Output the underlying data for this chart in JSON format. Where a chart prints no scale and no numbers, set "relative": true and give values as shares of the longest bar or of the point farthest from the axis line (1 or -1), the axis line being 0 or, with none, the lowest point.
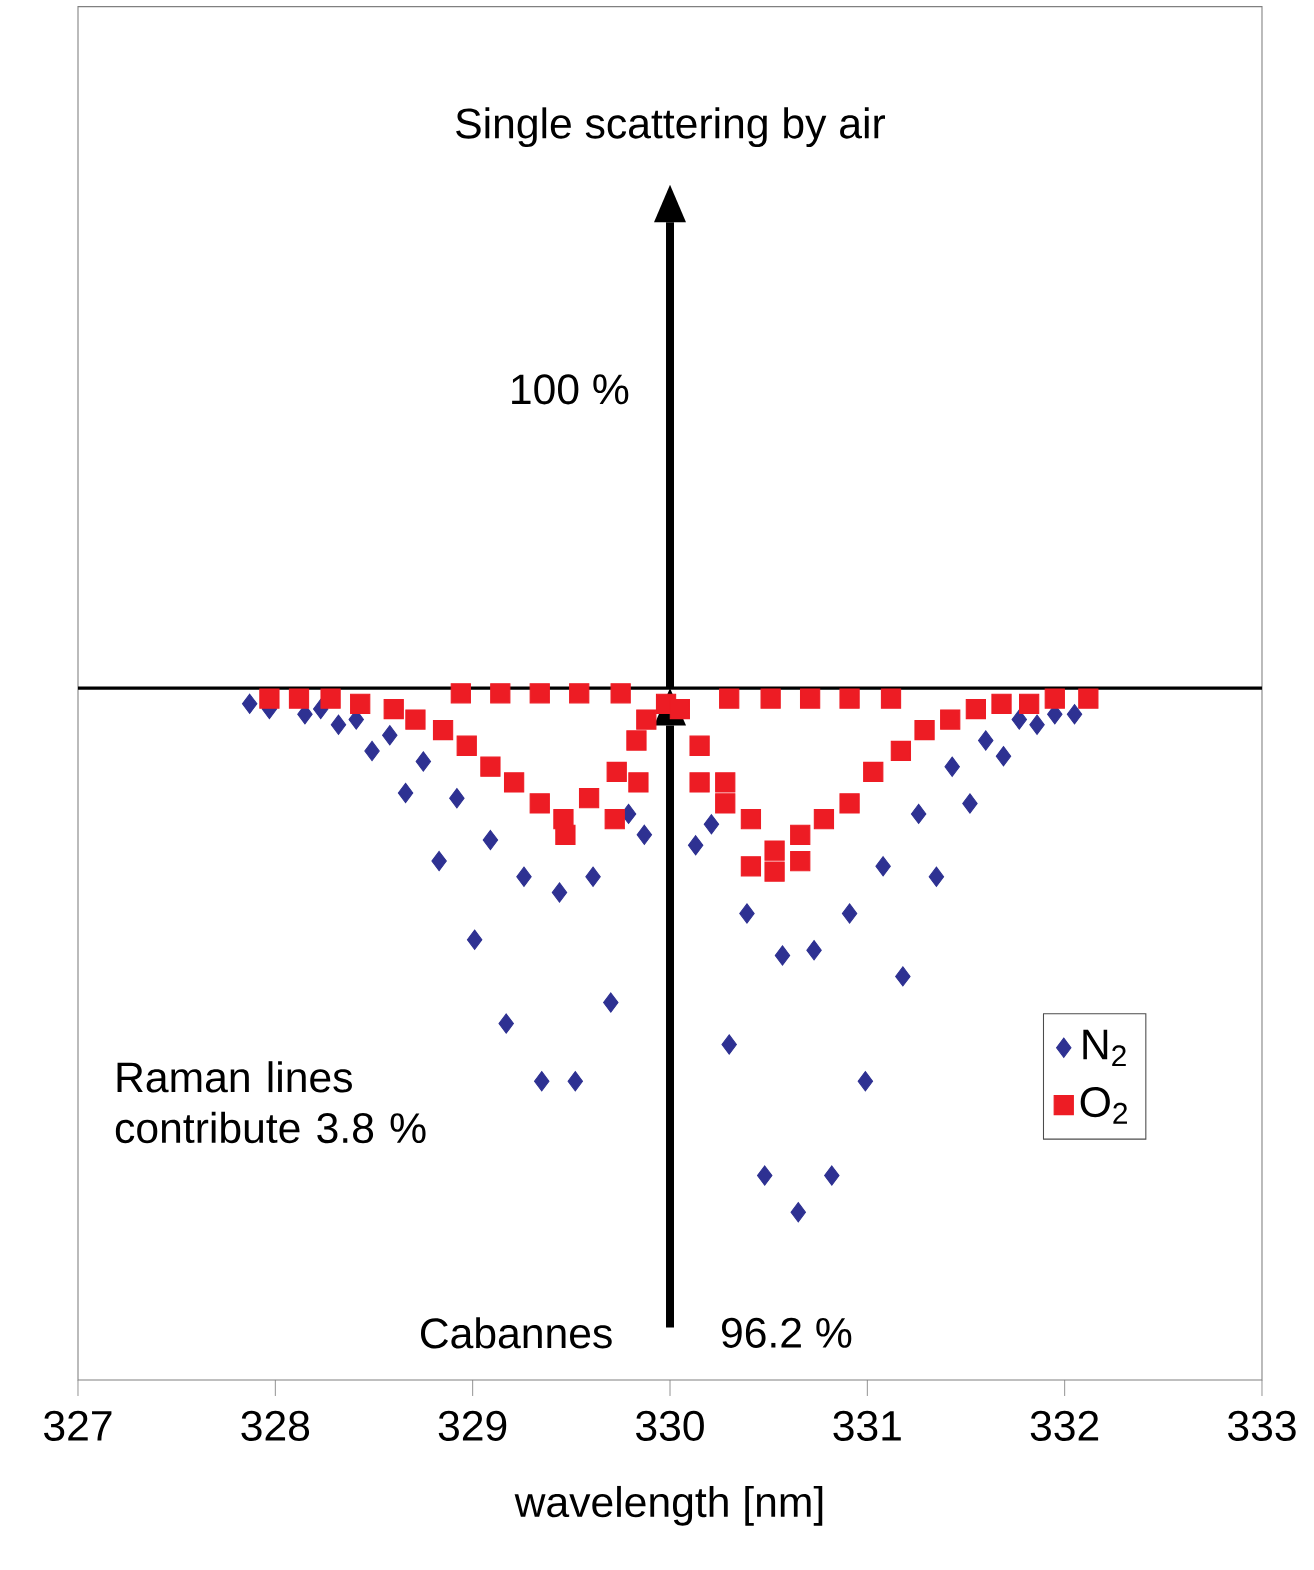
{
  "chart_data": {
    "type": "scatter",
    "relative": true,
    "xlabel": "wavelength [nm]",
    "xlim": [
      327,
      333
    ],
    "xticks": [
      327,
      328,
      329,
      330,
      331,
      332,
      333
    ],
    "legend": "right",
    "annotations": [
      "Single scattering by air",
      "100 %",
      "Raman lines contribute 3.8 %",
      "Cabannes",
      "96.2 %"
    ],
    "series": [
      {
        "name": "N$_{2}$",
        "color": "#2e3192",
        "marker": "diamond",
        "x": [
          327.87,
          327.97,
          328.15,
          328.23,
          328.32,
          328.41,
          328.49,
          328.58,
          328.66,
          328.75,
          328.83,
          328.92,
          329.01,
          329.09,
          329.17,
          329.26,
          329.35,
          329.44,
          329.52,
          329.61,
          329.7,
          329.79,
          329.87,
          330.13,
          330.21,
          330.3,
          330.39,
          330.48,
          330.57,
          330.65,
          330.73,
          330.82,
          330.91,
          330.99,
          331.08,
          331.18,
          331.26,
          331.35,
          331.43,
          331.52,
          331.6,
          331.69,
          331.77,
          331.86,
          331.95,
          332.05
        ],
        "values": [
          -0.03,
          -0.04,
          -0.05,
          -0.04,
          -0.07,
          -0.06,
          -0.12,
          -0.09,
          -0.2,
          -0.14,
          -0.33,
          -0.21,
          -0.48,
          -0.29,
          -0.64,
          -0.36,
          -0.75,
          -0.39,
          -0.75,
          -0.36,
          -0.6,
          -0.24,
          -0.28,
          -0.3,
          -0.26,
          -0.68,
          -0.43,
          -0.93,
          -0.51,
          -1,
          -0.5,
          -0.93,
          -0.43,
          -0.75,
          -0.34,
          -0.55,
          -0.24,
          -0.36,
          -0.15,
          -0.22,
          -0.1,
          -0.13,
          -0.06,
          -0.07,
          -0.05,
          -0.05
        ]
      },
      {
        "name": "O$_{2}$",
        "color": "#ed1c24",
        "marker": "square",
        "x": [
          327.97,
          328.12,
          328.28,
          328.43,
          328.6,
          328.71,
          328.85,
          328.97,
          329.09,
          329.21,
          329.34,
          329.46,
          329.47,
          329.59,
          329.72,
          329.73,
          329.84,
          329.83,
          329.88,
          328.94,
          329.14,
          329.34,
          329.54,
          329.75,
          329.98,
          330.05,
          330.3,
          330.51,
          330.71,
          330.91,
          331.12,
          330.15,
          330.15,
          330.28,
          330.28,
          330.41,
          330.41,
          330.53,
          330.53,
          330.66,
          330.66,
          330.78,
          330.91,
          331.03,
          331.17,
          331.29,
          331.42,
          331.55,
          331.68,
          331.82,
          331.95,
          332.12
        ],
        "values": [
          -0.02,
          -0.02,
          -0.02,
          -0.03,
          -0.04,
          -0.06,
          -0.08,
          -0.11,
          -0.15,
          -0.18,
          -0.22,
          -0.25,
          -0.28,
          -0.21,
          -0.25,
          -0.16,
          -0.18,
          -0.1,
          -0.06,
          -0.01,
          -0.01,
          -0.01,
          -0.01,
          -0.01,
          -0.03,
          -0.04,
          -0.02,
          -0.02,
          -0.02,
          -0.02,
          -0.02,
          -0.11,
          -0.18,
          -0.18,
          -0.22,
          -0.25,
          -0.34,
          -0.31,
          -0.35,
          -0.33,
          -0.28,
          -0.25,
          -0.22,
          -0.16,
          -0.12,
          -0.08,
          -0.06,
          -0.04,
          -0.03,
          -0.03,
          -0.02,
          -0.02
        ]
      }
    ]
  }
}
